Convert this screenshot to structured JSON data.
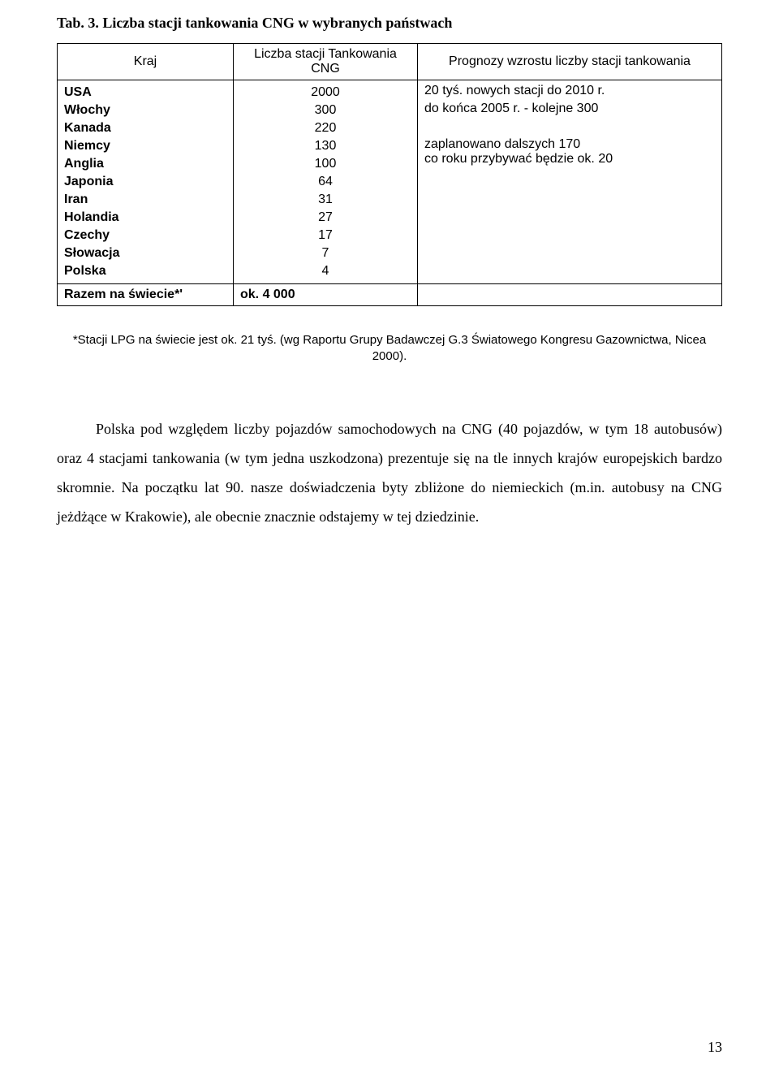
{
  "title": "Tab. 3. Liczba stacji tankowania CNG w wybranych państwach",
  "table": {
    "headers": {
      "country": "Kraj",
      "count": "Liczba stacji Tankowania\nCNG",
      "forecast": "Prognozy wzrostu liczby stacji tankowania"
    },
    "rows": [
      {
        "country": "USA",
        "count": "2000"
      },
      {
        "country": "Włochy",
        "count": "300"
      },
      {
        "country": "Kanada",
        "count": "220"
      },
      {
        "country": "Niemcy",
        "count": "130"
      },
      {
        "country": "Anglia",
        "count": "100"
      },
      {
        "country": "Japonia",
        "count": "64"
      },
      {
        "country": "Iran",
        "count": "31"
      },
      {
        "country": "Holandia",
        "count": "27"
      },
      {
        "country": "Czechy",
        "count": "17"
      },
      {
        "country": "Słowacja",
        "count": "7"
      },
      {
        "country": "Polska",
        "count": "4"
      }
    ],
    "forecast_lines": {
      "l1": "20 tyś. nowych stacji do 2010 r.",
      "l2": "do końca 2005 r. - kolejne 300",
      "l3": "zaplanowano dalszych 170",
      "l4": "co roku przybywać będzie ok. 20"
    },
    "total_row": {
      "label": "Razem na świecie*'",
      "value": "ok. 4 000"
    }
  },
  "footnote": "*Stacji LPG na świecie jest ok. 21 tyś. (wg Raportu Grupy Badawczej G.3 Światowego Kongresu Gazownictwa, Nicea 2000).",
  "paragraph": "Polska pod względem liczby pojazdów samochodowych na CNG (40 pojazdów, w tym 18 autobusów) oraz 4 stacjami tankowania (w tym jedna uszkodzona) prezentuje się na tle innych krajów europejskich bardzo skromnie. Na początku lat 90. nasze doświadczenia byty zbliżone do niemieckich (m.in. autobusy na CNG jeżdżące w Krakowie), ale obecnie znacznie odstajemy w tej dziedzinie.",
  "page_number": "13"
}
